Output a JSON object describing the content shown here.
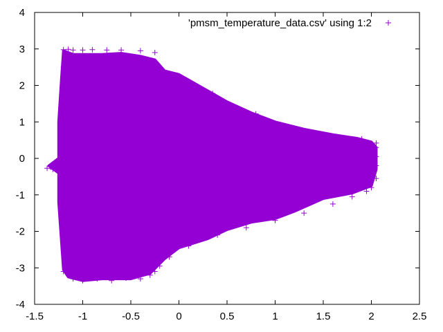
{
  "chart_data": {
    "type": "scatter",
    "title": "",
    "xlabel": "",
    "ylabel": "",
    "xlim": [
      -1.5,
      2.5
    ],
    "ylim": [
      -4,
      4
    ],
    "x_ticks": [
      "-1.5",
      "-1",
      "-0.5",
      "0",
      "0.5",
      "1",
      "1.5",
      "2",
      "2.5"
    ],
    "y_ticks": [
      "-4",
      "-3",
      "-2",
      "-1",
      "0",
      "1",
      "2",
      "3",
      "4"
    ],
    "grid": false,
    "legend_position": "top-right",
    "series": [
      {
        "name": "'pmsm_temperature_data.csv' using 1:2",
        "color": "#9400d3",
        "marker": "plus",
        "region_outline": {
          "upper": [
            [
              -1.2,
              2.95
            ],
            [
              -1.1,
              2.85
            ],
            [
              -1.0,
              2.85
            ],
            [
              -0.8,
              2.85
            ],
            [
              -0.6,
              2.88
            ],
            [
              -0.4,
              2.8
            ],
            [
              -0.25,
              2.7
            ],
            [
              -0.15,
              2.4
            ],
            [
              0.0,
              2.3
            ],
            [
              0.1,
              2.15
            ],
            [
              0.3,
              1.85
            ],
            [
              0.5,
              1.55
            ],
            [
              0.75,
              1.25
            ],
            [
              1.0,
              1.0
            ],
            [
              1.3,
              0.8
            ],
            [
              1.6,
              0.65
            ],
            [
              1.85,
              0.55
            ],
            [
              2.0,
              0.45
            ],
            [
              2.05,
              0.3
            ]
          ],
          "lower": [
            [
              2.05,
              -0.3
            ],
            [
              2.0,
              -0.75
            ],
            [
              1.8,
              -0.95
            ],
            [
              1.5,
              -1.1
            ],
            [
              1.2,
              -1.45
            ],
            [
              1.0,
              -1.65
            ],
            [
              0.75,
              -1.75
            ],
            [
              0.5,
              -1.95
            ],
            [
              0.3,
              -2.2
            ],
            [
              0.0,
              -2.45
            ],
            [
              -0.15,
              -2.75
            ],
            [
              -0.3,
              -3.15
            ],
            [
              -0.5,
              -3.3
            ],
            [
              -0.8,
              -3.3
            ],
            [
              -1.0,
              -3.35
            ],
            [
              -1.15,
              -3.25
            ],
            [
              -1.2,
              -3.05
            ],
            [
              -1.25,
              -1.2
            ],
            [
              -1.25,
              -0.4
            ],
            [
              -1.35,
              -0.2
            ],
            [
              -1.25,
              0.0
            ],
            [
              -1.25,
              1.0
            ],
            [
              -1.22,
              2.2
            ]
          ]
        },
        "points": [
          [
            -1.2,
            2.98
          ],
          [
            -1.15,
            2.99
          ],
          [
            -1.1,
            2.97
          ],
          [
            -1.0,
            2.97
          ],
          [
            -0.9,
            2.98
          ],
          [
            -0.75,
            2.97
          ],
          [
            -0.6,
            2.97
          ],
          [
            -0.4,
            2.95
          ],
          [
            -0.25,
            2.9
          ],
          [
            0.2,
            1.95
          ],
          [
            0.25,
            1.87
          ],
          [
            0.35,
            1.78
          ],
          [
            0.6,
            1.38
          ],
          [
            0.8,
            1.22
          ],
          [
            1.9,
            0.53
          ],
          [
            2.05,
            0.42
          ],
          [
            2.05,
            0.3
          ],
          [
            2.05,
            0.05
          ],
          [
            2.05,
            -0.2
          ],
          [
            2.05,
            -0.55
          ],
          [
            2.0,
            -0.8
          ],
          [
            -1.37,
            -0.27
          ],
          [
            -1.34,
            -0.22
          ],
          [
            -1.31,
            -0.3
          ],
          [
            -1.28,
            -0.14
          ],
          [
            -1.2,
            -3.1
          ],
          [
            -1.1,
            -3.3
          ],
          [
            -1.0,
            -3.35
          ],
          [
            -0.85,
            -3.3
          ],
          [
            -0.7,
            -3.35
          ],
          [
            -0.55,
            -3.28
          ],
          [
            -0.4,
            -3.3
          ],
          [
            -0.3,
            -3.2
          ],
          [
            -0.25,
            -3.1
          ],
          [
            -0.2,
            -2.95
          ],
          [
            -0.1,
            -2.7
          ],
          [
            0.1,
            -2.4
          ],
          [
            0.4,
            -2.1
          ],
          [
            0.7,
            -1.9
          ],
          [
            1.0,
            -1.7
          ],
          [
            1.3,
            -1.5
          ],
          [
            1.6,
            -1.25
          ],
          [
            1.8,
            -1.05
          ],
          [
            1.95,
            -0.9
          ],
          [
            -1.2,
            2.5
          ],
          [
            -1.2,
            1.9
          ],
          [
            -1.22,
            1.2
          ],
          [
            -1.2,
            0.5
          ],
          [
            -1.2,
            -0.6
          ],
          [
            -1.2,
            -1.5
          ],
          [
            -1.2,
            -2.3
          ]
        ]
      }
    ]
  }
}
